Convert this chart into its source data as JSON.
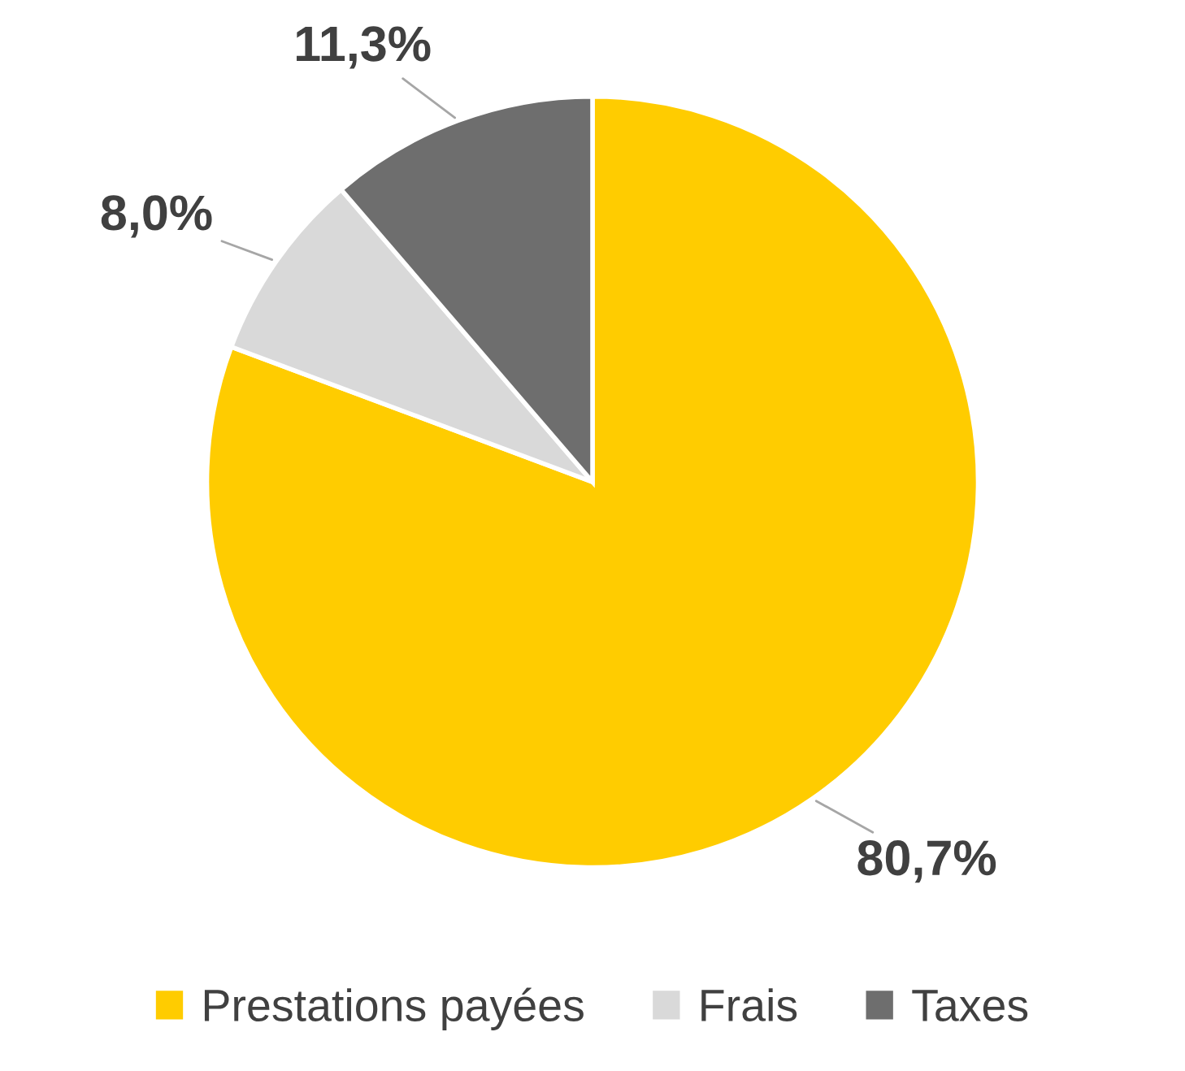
{
  "chart_data": {
    "type": "pie",
    "categories": [
      "Prestations payées",
      "Frais",
      "Taxes"
    ],
    "values": [
      80.7,
      8.0,
      11.3
    ],
    "colors": [
      "#ffcc00",
      "#d9d9d9",
      "#6e6e6e"
    ],
    "value_labels": [
      "80,7%",
      "8,0%",
      "11,3%"
    ],
    "legend": "bottom"
  }
}
